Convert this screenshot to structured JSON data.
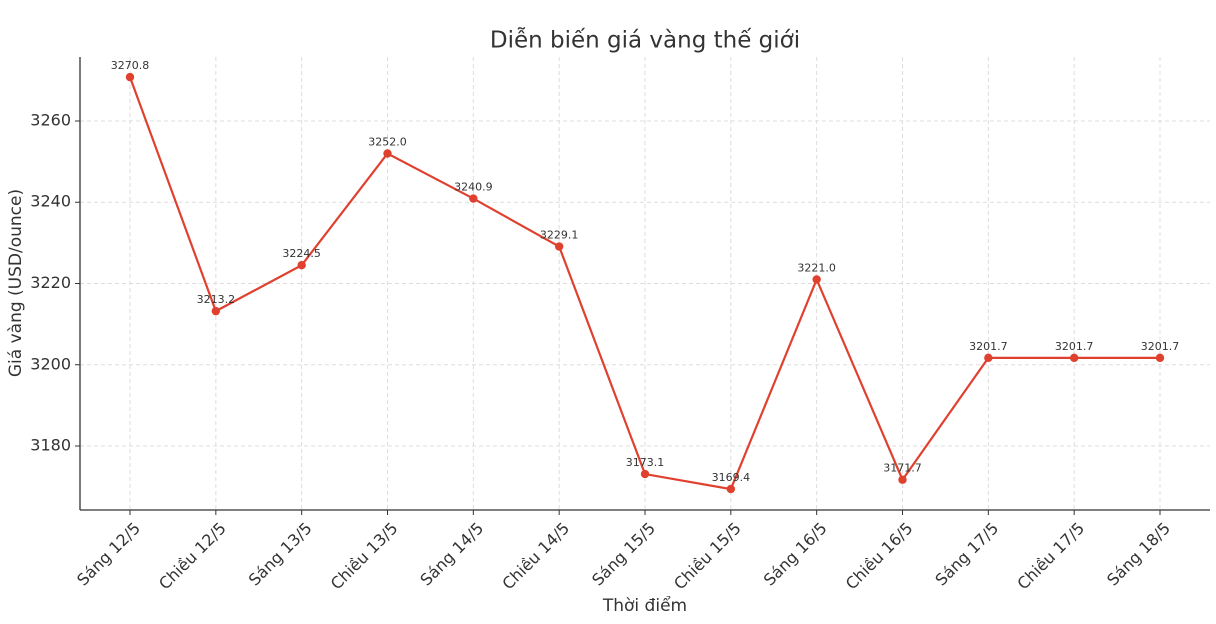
{
  "chart_data": {
    "type": "line",
    "title": "Diễn biến giá vàng thế giới",
    "x_label": "Thời điểm",
    "y_label": "Giá vàng (USD/ounce)",
    "categories": [
      "Sáng 12/5",
      "Chiều 12/5",
      "Sáng 13/5",
      "Chiều 13/5",
      "Sáng 14/5",
      "Chiều 14/5",
      "Sáng 15/5",
      "Chiều 15/5",
      "Sáng 16/5",
      "Chiều 16/5",
      "Sáng 17/5",
      "Chiều 17/5",
      "Sáng 18/5"
    ],
    "values": [
      3270.8,
      3213.2,
      3224.5,
      3252.0,
      3240.9,
      3229.1,
      3173.1,
      3169.4,
      3221.0,
      3171.7,
      3201.7,
      3201.7,
      3201.7
    ],
    "value_labels": [
      "3270.8",
      "3213.2",
      "3224.5",
      "3252.0",
      "3240.9",
      "3229.1",
      "3173.1",
      "3169.4",
      "3221.0",
      "3171.7",
      "3201.7",
      "3201.7",
      "3201.7"
    ],
    "color": "#e0412f",
    "ylim": [
      3164.25,
      3275.75
    ],
    "yticks": [
      3180,
      3200,
      3220,
      3240,
      3260
    ],
    "grid": true
  }
}
